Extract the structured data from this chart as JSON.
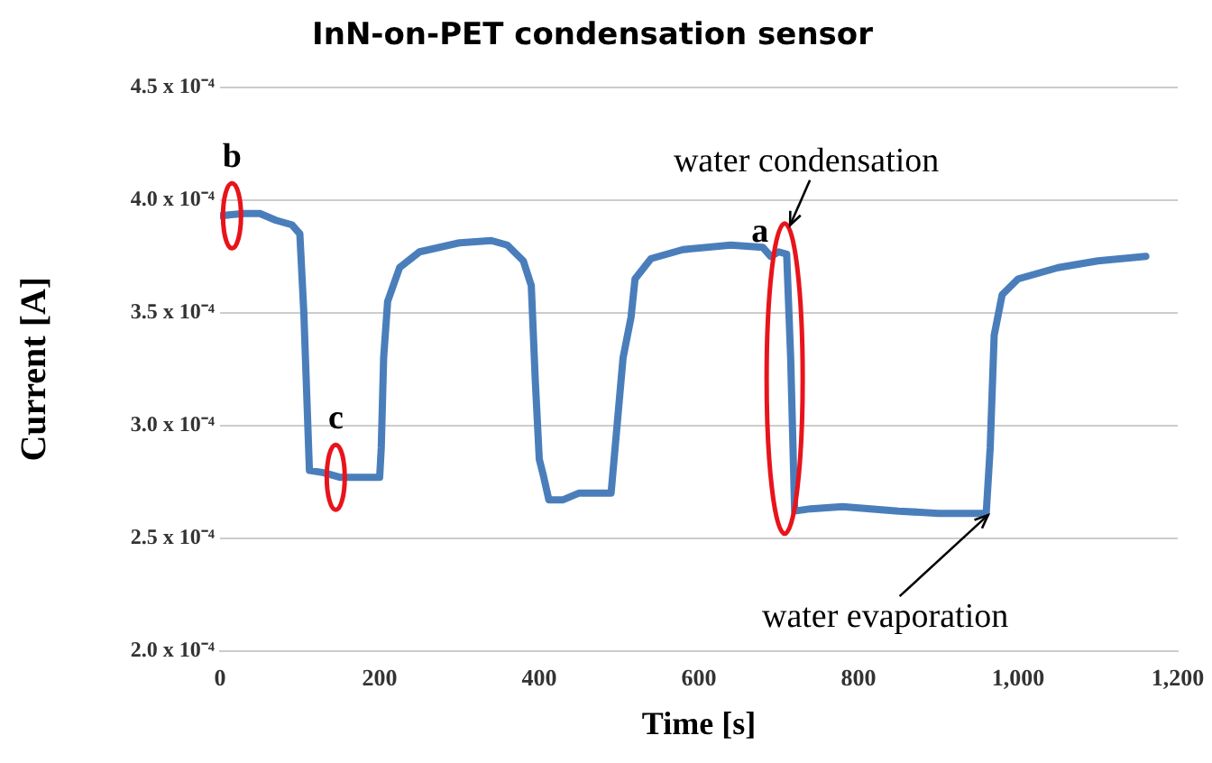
{
  "chart_data": {
    "type": "line",
    "title": "InN-on-PET condensation sensor",
    "xlabel": "Time [s]",
    "ylabel": "Current [A]",
    "series": [
      {
        "color": "#4a7ebb",
        "x": [
          0,
          30,
          50,
          70,
          90,
          100,
          105,
          110,
          112,
          130,
          150,
          200,
          202,
          205,
          210,
          225,
          250,
          300,
          340,
          360,
          380,
          390,
          395,
          400,
          405,
          412,
          430,
          450,
          490,
          495,
          505,
          515,
          520,
          540,
          580,
          640,
          680,
          690,
          700,
          710,
          715,
          720,
          740,
          780,
          850,
          900,
          960,
          965,
          970,
          980,
          1000,
          1050,
          1100,
          1160
        ],
        "values": [
          0.000393,
          0.000394,
          0.000394,
          0.000391,
          0.000389,
          0.000385,
          0.00035,
          0.0003,
          0.00028,
          0.000279,
          0.000277,
          0.000277,
          0.00029,
          0.00033,
          0.000355,
          0.00037,
          0.000377,
          0.000381,
          0.000382,
          0.00038,
          0.000373,
          0.000362,
          0.00032,
          0.000285,
          0.000278,
          0.000267,
          0.000267,
          0.00027,
          0.00027,
          0.00029,
          0.00033,
          0.000348,
          0.000365,
          0.000374,
          0.000378,
          0.00038,
          0.000379,
          0.000375,
          0.000377,
          0.000376,
          0.00033,
          0.000262,
          0.000263,
          0.000264,
          0.000262,
          0.000261,
          0.000261,
          0.00029,
          0.00034,
          0.000358,
          0.000365,
          0.00037,
          0.000373,
          0.000375
        ]
      }
    ],
    "xlim": [
      0,
      1200
    ],
    "xticks": [
      0,
      200,
      400,
      600,
      800,
      {
        "value": 1000,
        "label": "1,000"
      },
      {
        "value": 1200,
        "label": "1,200"
      }
    ],
    "ylim": [
      0.0002,
      0.00045
    ],
    "yticks": [
      {
        "value": 0.0002,
        "label": "2.0 x 10⁻⁴"
      },
      {
        "value": 0.00025,
        "label": "2.5 x 10⁻⁴"
      },
      {
        "value": 0.0003,
        "label": "3.0 x 10⁻⁴"
      },
      {
        "value": 0.00035,
        "label": "3.5 x 10⁻⁴"
      },
      {
        "value": 0.0004,
        "label": "4.0 x 10⁻⁴"
      },
      {
        "value": 0.00045,
        "label": "4.5 x 10⁻⁴"
      }
    ],
    "grid": "y",
    "legend": false,
    "marker": "none",
    "line_style": "solid",
    "annotations": [
      {
        "text": "b",
        "x": 15,
        "y": 0.000393
      },
      {
        "text": "c",
        "x": 145,
        "y": 0.000277
      },
      {
        "text": "a",
        "x": 690,
        "y": 0.000376
      },
      {
        "text": "water condensation",
        "x": 712,
        "y": 0.00038
      },
      {
        "text": "water evaporation",
        "x": 960,
        "y": 0.000261
      }
    ]
  }
}
